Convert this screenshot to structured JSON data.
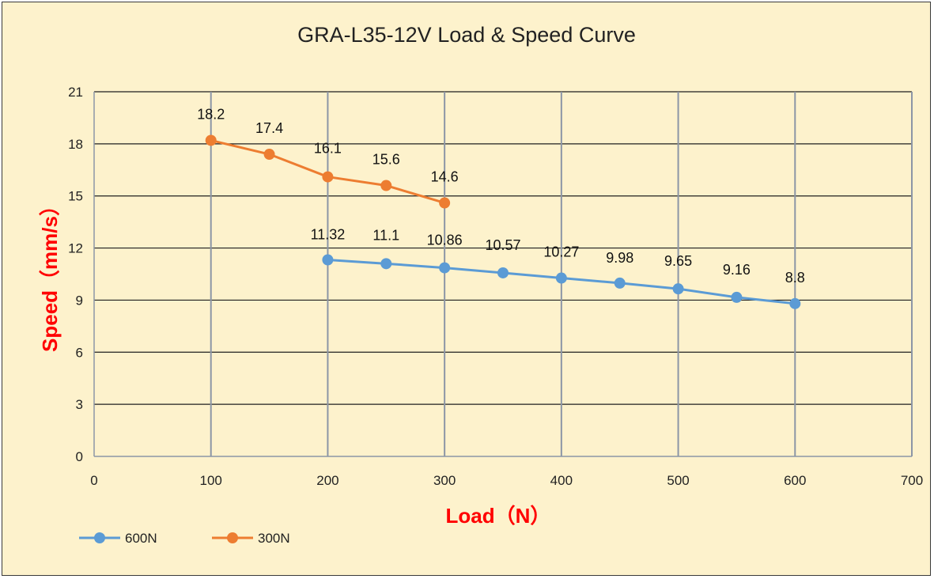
{
  "chart_data": {
    "type": "line",
    "title": "GRA-L35-12V Load & Speed Curve",
    "xlabel": "Load（N）",
    "ylabel": "Speed（mm/s）",
    "xlim": [
      0,
      700
    ],
    "ylim": [
      0,
      21
    ],
    "xticks": [
      0,
      100,
      200,
      300,
      400,
      500,
      600,
      700
    ],
    "yticks": [
      0,
      3,
      6,
      9,
      12,
      15,
      18,
      21
    ],
    "grid": true,
    "legend_position": "bottom-left",
    "series": [
      {
        "name": "600N",
        "color": "#5b9bd5",
        "x": [
          200,
          250,
          300,
          350,
          400,
          450,
          500,
          550,
          600
        ],
        "y": [
          11.32,
          11.1,
          10.86,
          10.57,
          10.27,
          9.98,
          9.65,
          9.16,
          8.8
        ],
        "labels": [
          "11.32",
          "11.1",
          "10.86",
          "10.57",
          "10.27",
          "9.98",
          "9.65",
          "9.16",
          "8.8"
        ]
      },
      {
        "name": "300N",
        "color": "#ed7d31",
        "x": [
          100,
          150,
          200,
          250,
          300
        ],
        "y": [
          18.2,
          17.4,
          16.1,
          15.6,
          14.6
        ],
        "labels": [
          "18.2",
          "17.4",
          "16.1",
          "15.6",
          "14.6"
        ]
      }
    ]
  }
}
